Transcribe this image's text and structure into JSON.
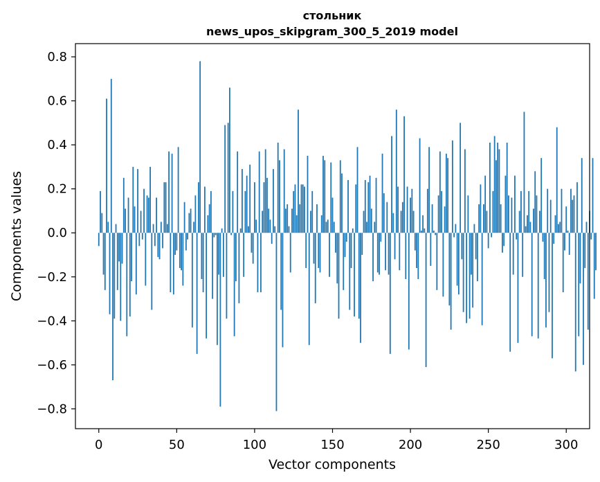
{
  "chart_data": {
    "type": "bar",
    "title": "стольник",
    "subtitle": "news_upos_skipgram_300_5_2019 model",
    "xlabel": "Vector components",
    "ylabel": "Components values",
    "xlim": [
      -15,
      315
    ],
    "ylim": [
      -0.89,
      0.86
    ],
    "xticks": [
      0,
      50,
      100,
      150,
      200,
      250,
      300
    ],
    "xtick_labels": [
      "0",
      "50",
      "100",
      "150",
      "200",
      "250",
      "300"
    ],
    "yticks": [
      -0.8,
      -0.6,
      -0.4,
      -0.2,
      0.0,
      0.2,
      0.4,
      0.6,
      0.8
    ],
    "ytick_labels": [
      "−0.8",
      "−0.6",
      "−0.4",
      "−0.2",
      "0.0",
      "0.2",
      "0.4",
      "0.6",
      "0.8"
    ],
    "grid": false,
    "bar_color": "#1f77b4",
    "values": [
      -0.06,
      0.19,
      0.09,
      -0.19,
      -0.26,
      0.61,
      0.05,
      -0.37,
      0.7,
      -0.67,
      -0.39,
      0.04,
      -0.26,
      -0.13,
      -0.4,
      -0.14,
      0.25,
      0.11,
      -0.47,
      0.16,
      -0.38,
      -0.22,
      0.3,
      0.12,
      -0.28,
      0.29,
      -0.06,
      0.1,
      -0.03,
      0.2,
      -0.24,
      0.17,
      0.16,
      0.3,
      -0.35,
      0.04,
      -0.06,
      0.16,
      -0.11,
      -0.12,
      0.05,
      -0.07,
      0.23,
      0.23,
      0.04,
      0.37,
      -0.27,
      0.36,
      -0.28,
      -0.1,
      -0.08,
      0.39,
      -0.16,
      -0.17,
      -0.24,
      0.14,
      -0.08,
      -0.03,
      0.09,
      0.11,
      -0.43,
      0.05,
      0.17,
      -0.55,
      0.23,
      0.78,
      -0.21,
      -0.27,
      0.21,
      -0.48,
      0.08,
      0.13,
      0.19,
      -0.3,
      -0.02,
      -0.01,
      -0.51,
      -0.19,
      -0.79,
      0.02,
      -0.2,
      0.49,
      -0.39,
      0.5,
      0.66,
      -0.01,
      0.19,
      -0.47,
      -0.22,
      0.37,
      -0.32,
      0.02,
      0.29,
      -0.2,
      0.19,
      0.26,
      0.03,
      0.31,
      -0.09,
      -0.14,
      0.23,
      0.06,
      -0.27,
      0.37,
      -0.27,
      0.1,
      0.23,
      0.38,
      0.25,
      0.11,
      0.06,
      -0.05,
      0.29,
      0.03,
      -0.81,
      0.41,
      0.33,
      -0.35,
      -0.52,
      0.38,
      0.11,
      0.13,
      0.03,
      -0.18,
      0.11,
      0.19,
      0.22,
      0.08,
      0.56,
      0.13,
      0.22,
      0.22,
      0.21,
      -0.16,
      0.35,
      -0.51,
      0.1,
      0.19,
      -0.14,
      -0.32,
      0.13,
      -0.16,
      -0.18,
      0.08,
      0.35,
      0.33,
      0.05,
      0.06,
      -0.2,
      0.32,
      0.16,
      0.05,
      -0.09,
      -0.23,
      -0.39,
      0.33,
      0.27,
      -0.26,
      -0.11,
      -0.04,
      0.24,
      -0.35,
      -0.16,
      0.02,
      -0.38,
      0.22,
      0.39,
      -0.39,
      -0.5,
      -0.1,
      0.1,
      0.24,
      0.05,
      0.23,
      0.26,
      0.11,
      -0.22,
      0.05,
      0.25,
      -0.18,
      -0.19,
      -0.04,
      0.36,
      0.18,
      -0.17,
      0.14,
      -0.19,
      -0.55,
      0.44,
      0.09,
      -0.12,
      0.56,
      0.21,
      -0.17,
      0.1,
      0.14,
      0.53,
      -0.21,
      0.21,
      -0.53,
      0.16,
      0.2,
      0.1,
      -0.08,
      -0.16,
      -0.21,
      0.43,
      0.01,
      0.08,
      0.02,
      -0.61,
      0.2,
      0.39,
      -0.15,
      0.13,
      0.01,
      -0.01,
      -0.26,
      0.17,
      0.37,
      0.19,
      -0.29,
      0.12,
      0.36,
      0.34,
      -0.33,
      -0.44,
      0.42,
      -0.02,
      0.04,
      -0.24,
      -0.28,
      0.5,
      -0.12,
      -0.36,
      0.38,
      -0.41,
      0.17,
      -0.39,
      -0.19,
      -0.34,
      0.04,
      -0.12,
      -0.22,
      0.13,
      0.22,
      -0.42,
      0.13,
      0.26,
      0.1,
      -0.07,
      0.41,
      -0.02,
      0.19,
      0.44,
      0.33,
      0.41,
      0.38,
      0.13,
      -0.09,
      -0.06,
      0.26,
      0.41,
      0.17,
      -0.54,
      0.16,
      -0.19,
      0.26,
      -0.03,
      -0.5,
      0.1,
      0.19,
      -0.2,
      0.55,
      0.03,
      0.08,
      0.19,
      0.05,
      -0.47,
      0.11,
      0.28,
      0.17,
      -0.48,
      0.1,
      0.34,
      -0.04,
      -0.21,
      -0.43,
      0.2,
      -0.36,
      0.15,
      -0.57,
      -0.05,
      0.08,
      0.48,
      0.04,
      0.05,
      0.2,
      -0.27,
      -0.08,
      0.12,
      0.01,
      -0.1,
      0.2,
      0.15,
      0.17,
      -0.63,
      0.23,
      -0.47,
      -0.23,
      0.34,
      -0.6,
      -0.16,
      0.05,
      -0.44,
      0.1,
      -0.03,
      0.34,
      -0.3,
      -0.17
    ]
  }
}
